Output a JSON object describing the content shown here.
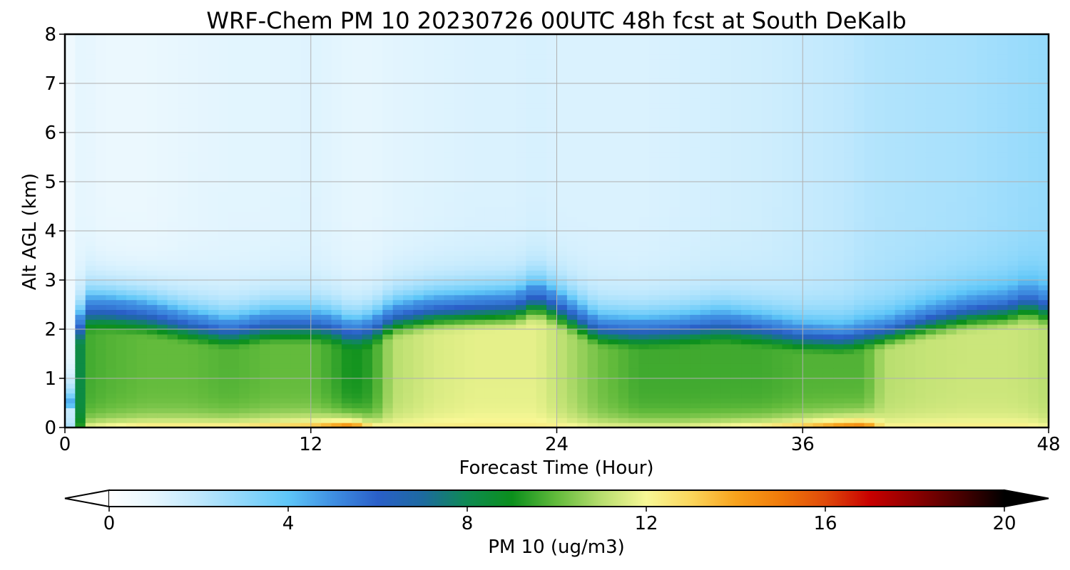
{
  "chart_data": {
    "type": "heatmap",
    "title": "WRF-Chem PM 10  20230726 00UTC 48h fcst at South DeKalb",
    "xlabel": "Forecast Time (Hour)",
    "ylabel": "Alt AGL (km)",
    "xlim": [
      0,
      48
    ],
    "ylim": [
      0,
      8
    ],
    "x_ticks": [
      0,
      12,
      24,
      36,
      48
    ],
    "y_ticks": [
      0,
      1,
      2,
      3,
      4,
      5,
      6,
      7,
      8
    ],
    "grid": true,
    "colorbar": {
      "label": "PM 10  (ug/m3)",
      "range": [
        0,
        20
      ],
      "ticks": [
        0,
        4,
        8,
        12,
        16,
        20
      ],
      "extend": "both",
      "colors": [
        "#ffffff",
        "#e6f6fe",
        "#bfe8fd",
        "#8fd8fb",
        "#5ec6f8",
        "#3f8fe2",
        "#2a5fc8",
        "#1d6aa0",
        "#0e8a52",
        "#0b8f1c",
        "#63bb3c",
        "#b8de6f",
        "#f8f896",
        "#fbd65c",
        "#f8a21c",
        "#f07a0a",
        "#e04a0a",
        "#c80000",
        "#8c0000",
        "#4a0000",
        "#000000"
      ]
    },
    "series": [
      {
        "x": [
          0,
          0.3,
          0.7,
          1,
          2,
          4,
          6,
          8,
          10,
          12,
          13,
          14,
          15,
          16,
          18,
          20,
          22,
          23,
          24,
          26,
          28,
          30,
          32,
          34,
          36,
          38,
          39,
          40,
          42,
          44,
          46,
          47,
          48
        ]
      }
    ],
    "boundary_layer_top_km": [
      0,
      0.6,
      2.2,
      2.6,
      2.6,
      2.5,
      2.3,
      2.15,
      2.3,
      2.3,
      2.25,
      2.1,
      2.2,
      2.45,
      2.6,
      2.65,
      2.7,
      2.9,
      2.7,
      2.2,
      2.15,
      2.2,
      2.3,
      2.2,
      2.05,
      2.0,
      2.1,
      2.15,
      2.4,
      2.6,
      2.7,
      2.85,
      2.7
    ],
    "surface_concentration": [
      0,
      3,
      9,
      12,
      12.5,
      13,
      13,
      13,
      13.5,
      14,
      15,
      16,
      13,
      12.5,
      12.5,
      12.5,
      12.5,
      12.5,
      12.5,
      12,
      12,
      12,
      12.5,
      13,
      14,
      15.5,
      16,
      12.5,
      12.5,
      12.5,
      12.5,
      12.5,
      12
    ],
    "mixed_layer_concentration": [
      0,
      2,
      8,
      9.6,
      9.8,
      10.0,
      10.0,
      9.8,
      10.0,
      10.0,
      9.6,
      9.0,
      9.4,
      11.0,
      11.5,
      11.7,
      11.7,
      11.7,
      11.2,
      10.2,
      9.6,
      9.6,
      9.6,
      9.6,
      9.8,
      9.8,
      9.8,
      11.0,
      11.2,
      11.3,
      11.3,
      11.2,
      11.0
    ],
    "free_troposphere_concentration": [
      0.3,
      0.7,
      1.0,
      1.0,
      0.8,
      0.8,
      1.0,
      1.1,
      1.1,
      1.2,
      1.1,
      1.0,
      1.0,
      1.1,
      1.2,
      1.3,
      1.3,
      1.4,
      1.3,
      1.3,
      1.3,
      1.4,
      1.5,
      1.6,
      1.8,
      2.0,
      2.2,
      2.3,
      2.4,
      2.5,
      2.7,
      2.8,
      2.9
    ]
  }
}
